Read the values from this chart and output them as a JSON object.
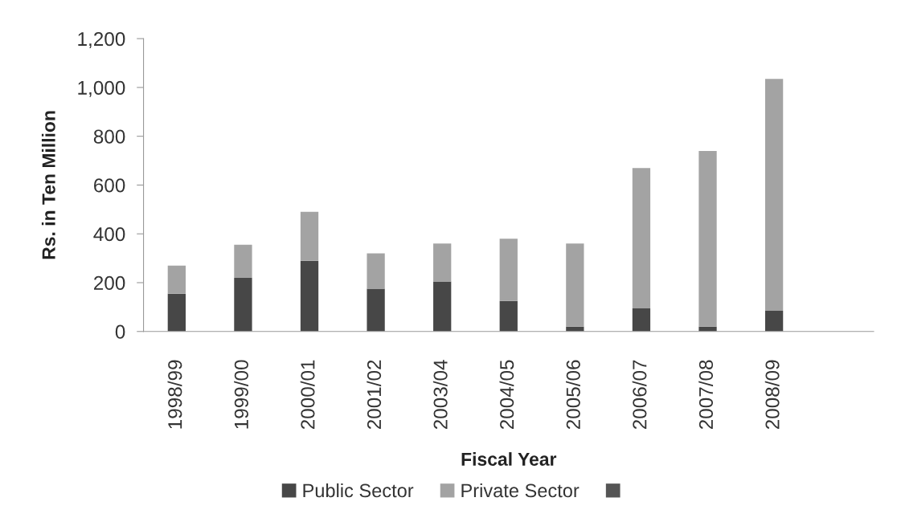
{
  "chart_data": {
    "type": "bar",
    "stacked": true,
    "xlabel": "Fiscal Year",
    "ylabel": "Rs. in Ten Million",
    "categories": [
      "1998/99",
      "1999/00",
      "2000/01",
      "2001/02",
      "2003/04",
      "2004/05",
      "2005/06",
      "2006/07",
      "2007/08",
      "2008/09",
      null
    ],
    "series": [
      {
        "name": "Public Sector",
        "color": "#474747",
        "values": [
          155,
          220,
          290,
          175,
          205,
          125,
          20,
          95,
          20,
          85,
          null
        ]
      },
      {
        "name": "Private Sector",
        "color": "#a3a3a3",
        "values": [
          115,
          135,
          200,
          145,
          155,
          255,
          340,
          575,
          720,
          950,
          null
        ]
      },
      {
        "color": "#555555",
        "values": [
          null,
          null,
          null,
          null,
          null,
          null,
          null,
          null,
          null,
          null,
          null
        ]
      }
    ],
    "ylim": [
      0,
      1200
    ],
    "yticks": [
      0,
      200,
      400,
      600,
      800,
      {
        "value": 1000,
        "label": "1,000"
      },
      {
        "value": 1200,
        "label": "1,200"
      }
    ],
    "legend": "bottom"
  }
}
